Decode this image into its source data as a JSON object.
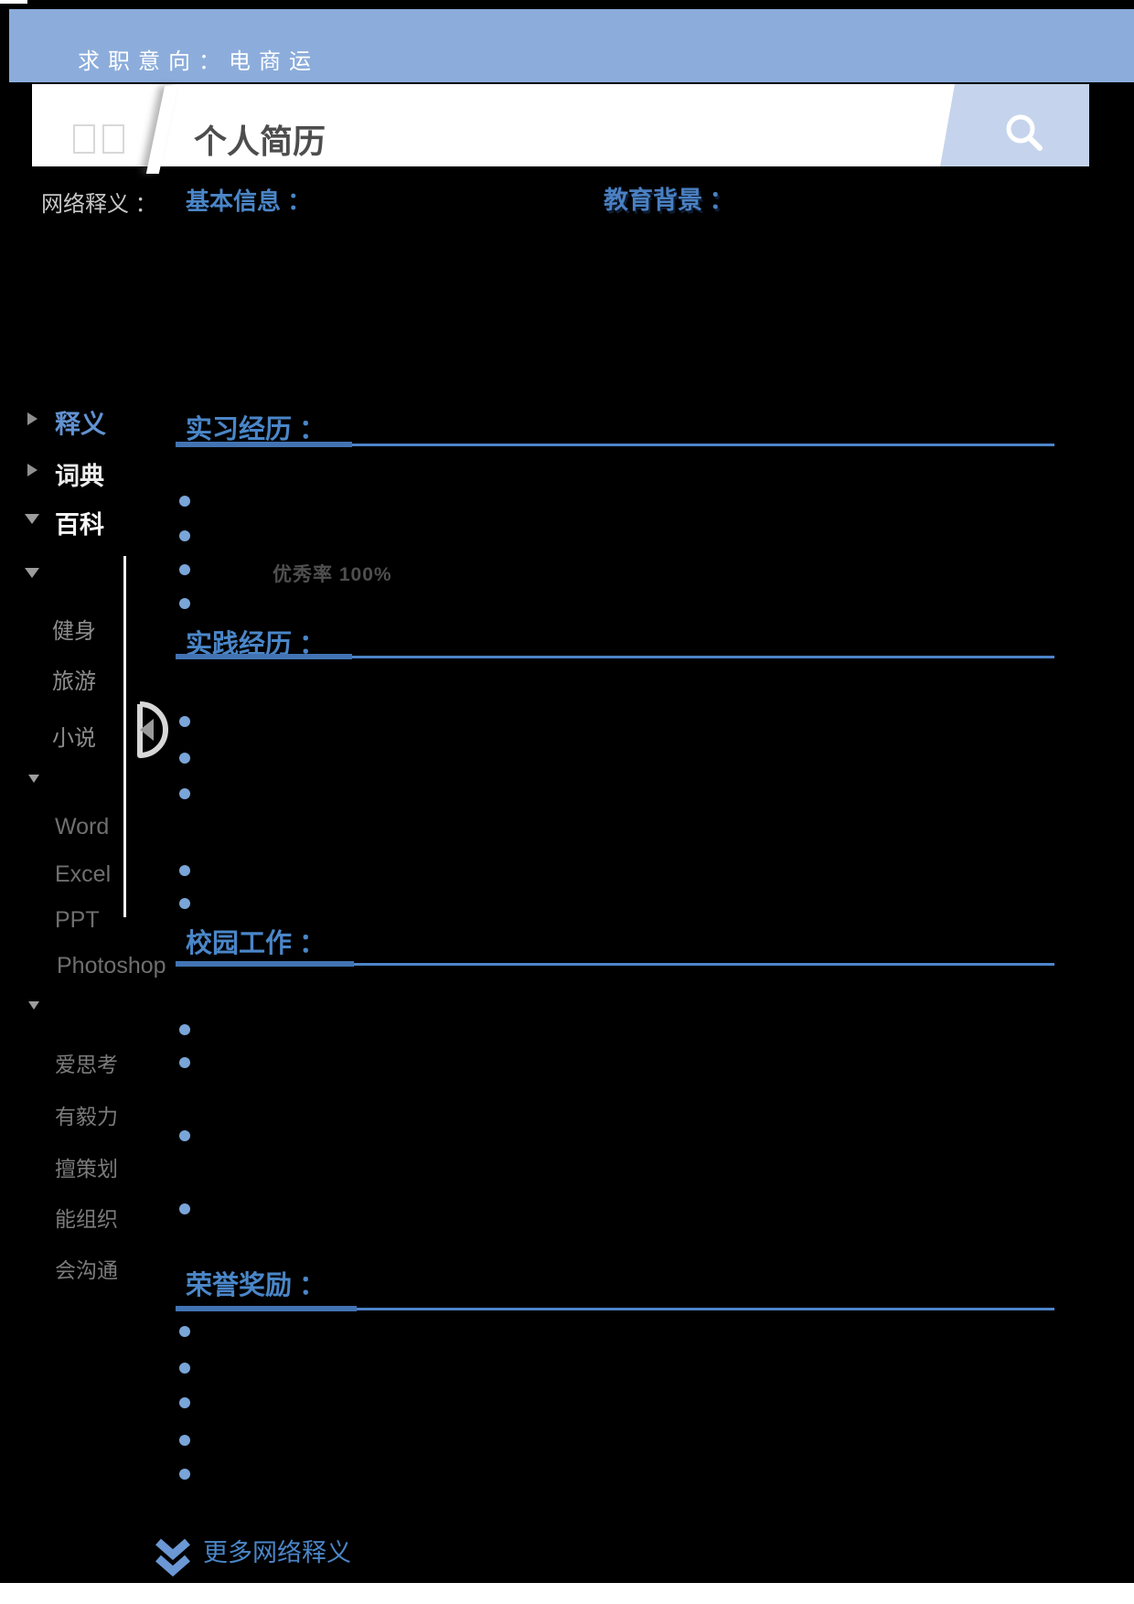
{
  "banner": {
    "text": "求职意向：电商运"
  },
  "search_bar": {
    "word": "个人简历"
  },
  "definition_row": {
    "label": "网络释义 ：",
    "basic_info_tab": "基本信息 ：",
    "education_tab": "教育背景 ："
  },
  "sidebar": {
    "nav": [
      {
        "label": "释义",
        "arrow": "triangle-right"
      },
      {
        "label": "词典",
        "arrow": "triangle-right"
      },
      {
        "label": "百科",
        "arrow": "triangle-down"
      }
    ],
    "hobbies": [
      "健身",
      "旅游",
      "小说"
    ],
    "skills": [
      "Word",
      "Excel",
      "PPT",
      "Photoshop"
    ],
    "traits": [
      "爱思考",
      "有毅力",
      "擅策划",
      "能组织",
      "会沟通"
    ]
  },
  "sections": [
    {
      "title": "实习经历 ：",
      "bullet_count": 4
    },
    {
      "title": "实践经历 ：",
      "bullet_count": 5
    },
    {
      "title": "校园工作 ：",
      "bullet_count": 4
    },
    {
      "title": "荣誉奖励 ：",
      "bullet_count": 5
    }
  ],
  "callout": {
    "text": "优秀率 100%"
  },
  "footer": {
    "more_link": "更多网络释义"
  },
  "icons": {
    "search": "magnifier",
    "audio": "play-left-triangle-in-half-circle",
    "nav_collapsed": "triangle-right",
    "nav_expanded": "triangle-down",
    "more": "double-chevron-down"
  },
  "colors": {
    "banner_blue": "#8caddb",
    "accent_blue": "#4a86c8",
    "underline_dark_blue": "#4273b3",
    "bullet_blue": "#7aa5d8",
    "search_button_blue": "#c5d4ec"
  }
}
